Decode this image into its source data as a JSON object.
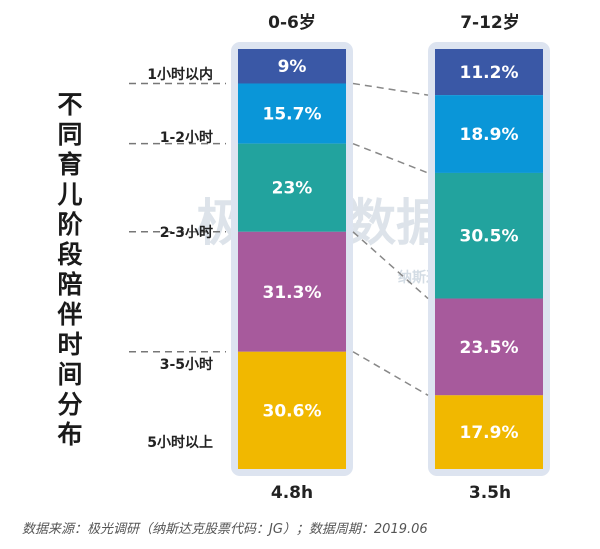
{
  "title": "不同育儿阶段陪伴时间分布",
  "source": "数据来源：极光调研（纳斯达克股票代码：JG）；数据周期：2019.06",
  "watermark": {
    "cn": "极光大数据",
    "en": "纳斯达克股票代码：JG"
  },
  "colors": [
    "#3a58a6",
    "#0a96d8",
    "#22a39e",
    "#a75a9c",
    "#f1b800"
  ],
  "chart_data": {
    "type": "bar",
    "stacked": true,
    "categories": [
      "0-6岁",
      "7-12岁"
    ],
    "totals": [
      "4.8h",
      "3.5h"
    ],
    "series": [
      {
        "name": "1小时以内",
        "values": [
          9,
          11.2
        ],
        "labels": [
          "9%",
          "11.2%"
        ]
      },
      {
        "name": "1-2小时",
        "values": [
          15.7,
          18.9
        ],
        "labels": [
          "15.7%",
          "18.9%"
        ]
      },
      {
        "name": "2-3小时",
        "values": [
          23,
          30.5
        ],
        "labels": [
          "23%",
          "30.5%"
        ]
      },
      {
        "name": "3-5小时",
        "values": [
          31.3,
          23.5
        ],
        "labels": [
          "31.3%",
          "23.5%"
        ]
      },
      {
        "name": "5小时以上",
        "values": [
          30.6,
          17.9
        ],
        "labels": [
          "30.6%",
          "17.9%"
        ]
      }
    ]
  }
}
